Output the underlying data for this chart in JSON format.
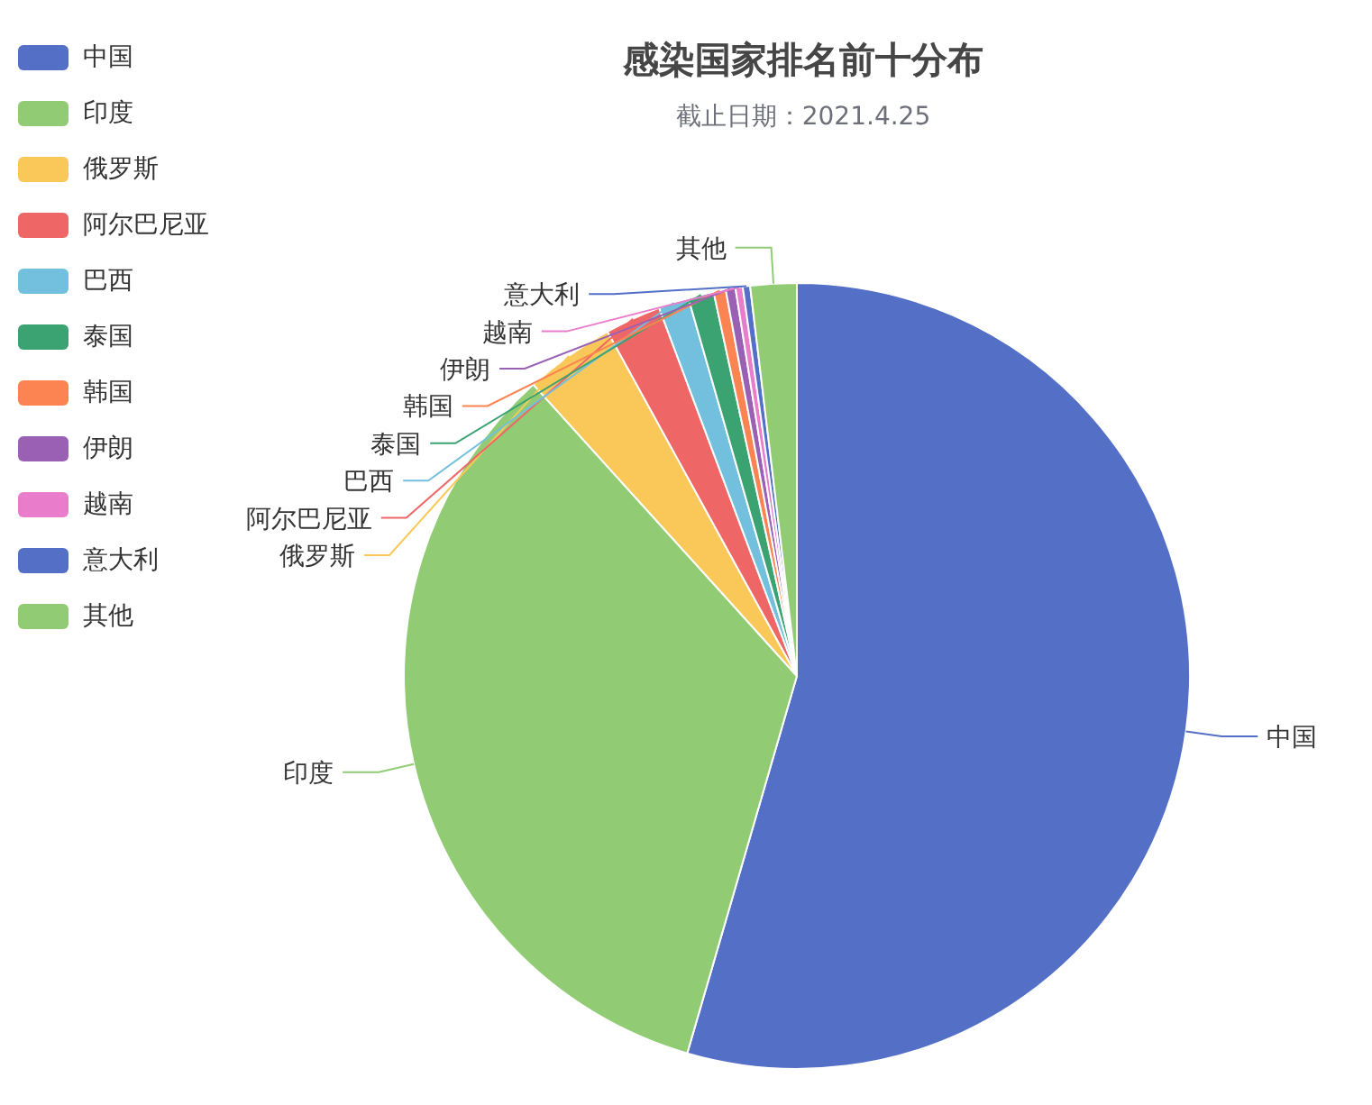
{
  "chart_data": {
    "type": "pie",
    "title": "感染国家排名前十分布",
    "subtitle": "截止日期：2021.4.25",
    "categories": [
      "中国",
      "印度",
      "俄罗斯",
      "阿尔巴尼亚",
      "巴西",
      "泰国",
      "韩国",
      "伊朗",
      "越南",
      "意大利",
      "其他"
    ],
    "values": [
      54.5,
      33.8,
      3.7,
      2.3,
      1.25,
      1.05,
      0.5,
      0.4,
      0.3,
      0.3,
      1.9
    ],
    "colors": [
      "#5470c6",
      "#91cc75",
      "#fac858",
      "#ee6666",
      "#73c0de",
      "#3ba272",
      "#fc8452",
      "#9a60b4",
      "#ea7ccc",
      "#5470c6",
      "#91cc75"
    ],
    "legend": "top left"
  }
}
